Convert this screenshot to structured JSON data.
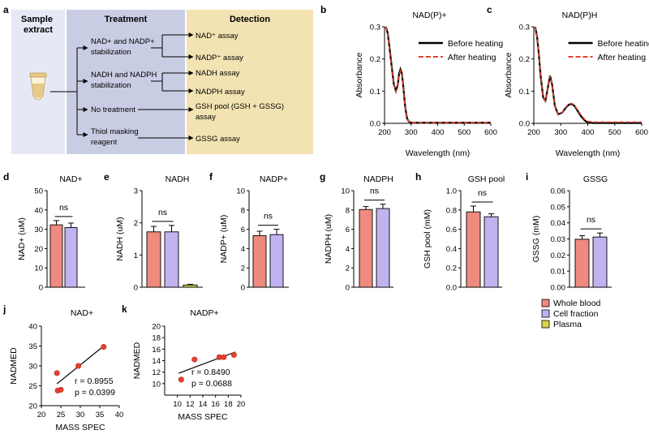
{
  "figure": {
    "panel_labels": [
      "a",
      "b",
      "c",
      "d",
      "e",
      "f",
      "g",
      "h",
      "i",
      "j",
      "k"
    ],
    "colors": {
      "sample_bg": "#e6e9f5",
      "treatment_bg": "#c9cde4",
      "detection_bg": "#f3e3b2",
      "whole_blood": "#ef8a7f",
      "cell_fraction": "#c2b2ef",
      "plasma": "#d8d44a",
      "before_heating": "#000000",
      "after_heating": "#e8402f",
      "scatter_point": "#e8402f"
    }
  },
  "schematic": {
    "sample_label": "Sample extract",
    "sample_label_lines": [
      "Sample",
      "extract"
    ],
    "treatment_header": "Treatment",
    "detection_header": "Detection",
    "treatments": [
      {
        "label": "NAD+ and NADP+ stabilization",
        "lines": [
          "NAD+ and NADP+",
          "stabilization"
        ]
      },
      {
        "label": "NADH and NADPH stabilization",
        "lines": [
          "NADH and NADPH",
          "stabilization"
        ]
      },
      {
        "label": "No treatment",
        "lines": [
          "No treatment"
        ]
      },
      {
        "label": "Thiol masking reagent",
        "lines": [
          "Thiol masking",
          "reagent"
        ]
      }
    ],
    "detections": [
      {
        "label": "NAD⁺ assay",
        "lines": [
          "NAD⁺ assay"
        ]
      },
      {
        "label": "NADP⁺ assay",
        "lines": [
          "NADP⁺ assay"
        ]
      },
      {
        "label": "NADH assay",
        "lines": [
          "NADH assay"
        ]
      },
      {
        "label": "NADPH assay",
        "lines": [
          "NADPH assay"
        ]
      },
      {
        "label": "GSH pool (GSH + GSSG) assay",
        "lines": [
          "GSH pool (GSH + GSSG)",
          "assay"
        ]
      },
      {
        "label": "GSSG assay",
        "lines": [
          "GSSG assay"
        ]
      }
    ]
  },
  "chart_data": [
    {
      "id": "b",
      "type": "line",
      "title": "NAD(P)+",
      "xlabel": "Wavelength (nm)",
      "ylabel": "Absorbance",
      "xlim": [
        200,
        600
      ],
      "ylim": [
        0,
        0.3
      ],
      "xticks": [
        200,
        300,
        400,
        500,
        600
      ],
      "yticks": [
        0.0,
        0.1,
        0.2,
        0.3
      ],
      "ytick_labels": [
        "0.0",
        "0.1",
        "0.2",
        "0.3"
      ],
      "legend": "top-right",
      "series": [
        {
          "name": "Before heating",
          "style": "solid",
          "x": [
            205,
            212,
            218,
            225,
            235,
            243,
            250,
            255,
            260,
            265,
            270,
            278,
            285,
            292,
            300,
            320,
            400,
            500,
            600
          ],
          "y": [
            0.3,
            0.28,
            0.24,
            0.19,
            0.12,
            0.1,
            0.12,
            0.155,
            0.168,
            0.155,
            0.12,
            0.05,
            0.015,
            0.005,
            0.002,
            0.002,
            0.002,
            0.002,
            0.002
          ]
        },
        {
          "name": "After heating",
          "style": "dashed",
          "x": [
            205,
            212,
            218,
            225,
            235,
            243,
            250,
            255,
            260,
            265,
            270,
            278,
            285,
            292,
            300,
            320,
            400,
            500,
            600
          ],
          "y": [
            0.3,
            0.275,
            0.235,
            0.185,
            0.118,
            0.098,
            0.118,
            0.15,
            0.163,
            0.15,
            0.117,
            0.048,
            0.014,
            0.005,
            0.002,
            0.002,
            0.002,
            0.002,
            0.002
          ]
        }
      ]
    },
    {
      "id": "c",
      "type": "line",
      "title": "NAD(P)H",
      "xlabel": "Wavelength (nm)",
      "ylabel": "Absorbance",
      "xlim": [
        200,
        600
      ],
      "ylim": [
        0,
        0.3
      ],
      "xticks": [
        200,
        300,
        400,
        500,
        600
      ],
      "yticks": [
        0.0,
        0.1,
        0.2,
        0.3
      ],
      "ytick_labels": [
        "0.0",
        "0.1",
        "0.2",
        "0.3"
      ],
      "legend": "top-right",
      "series": [
        {
          "name": "Before heating",
          "style": "solid",
          "x": [
            205,
            212,
            218,
            225,
            235,
            243,
            252,
            260,
            268,
            278,
            290,
            305,
            320,
            330,
            340,
            350,
            360,
            375,
            390,
            400,
            420,
            500,
            600
          ],
          "y": [
            0.3,
            0.27,
            0.22,
            0.15,
            0.08,
            0.07,
            0.11,
            0.148,
            0.12,
            0.055,
            0.028,
            0.033,
            0.05,
            0.058,
            0.06,
            0.055,
            0.042,
            0.022,
            0.008,
            0.003,
            0.001,
            0.001,
            0.001
          ]
        },
        {
          "name": "After heating",
          "style": "dashed",
          "x": [
            205,
            212,
            218,
            225,
            235,
            243,
            252,
            260,
            268,
            278,
            290,
            305,
            320,
            330,
            340,
            350,
            360,
            375,
            390,
            400,
            420,
            500,
            600
          ],
          "y": [
            0.3,
            0.27,
            0.22,
            0.15,
            0.08,
            0.07,
            0.11,
            0.147,
            0.12,
            0.055,
            0.028,
            0.034,
            0.052,
            0.06,
            0.062,
            0.057,
            0.045,
            0.026,
            0.011,
            0.006,
            0.004,
            0.004,
            0.004
          ]
        }
      ]
    },
    {
      "id": "d",
      "type": "bar",
      "title": "NAD+",
      "ylabel": "NAD+ (uM)",
      "ylim": [
        0,
        50
      ],
      "yticks": [
        0,
        10,
        20,
        30,
        40,
        50
      ],
      "ytick_labels": [
        "0",
        "10",
        "20",
        "30",
        "40",
        "50"
      ],
      "categories": [
        "Whole blood",
        "Cell fraction"
      ],
      "values": [
        32.3,
        30.9
      ],
      "errors": [
        2.2,
        2.3
      ],
      "annotation": "ns"
    },
    {
      "id": "e",
      "type": "bar",
      "title": "NADH",
      "ylabel": "NADH (uM)",
      "ylim": [
        0,
        3
      ],
      "yticks": [
        0,
        1,
        2,
        3
      ],
      "ytick_labels": [
        "0",
        "1",
        "2",
        "3"
      ],
      "categories": [
        "Whole blood",
        "Cell fraction",
        "Plasma"
      ],
      "values": [
        1.72,
        1.72,
        0.07
      ],
      "errors": [
        0.17,
        0.2,
        0.02
      ],
      "annotation": "ns"
    },
    {
      "id": "f",
      "type": "bar",
      "title": "NADP+",
      "ylabel": "NADP+ (uM)",
      "ylim": [
        0,
        10
      ],
      "yticks": [
        0,
        2,
        4,
        6,
        8,
        10
      ],
      "ytick_labels": [
        "0",
        "2",
        "4",
        "6",
        "8",
        "10"
      ],
      "categories": [
        "Whole blood",
        "Cell fraction"
      ],
      "values": [
        5.35,
        5.45
      ],
      "errors": [
        0.45,
        0.55
      ],
      "annotation": "ns"
    },
    {
      "id": "g",
      "type": "bar",
      "title": "NADPH",
      "ylabel": "NADPH (uM)",
      "ylim": [
        0,
        10
      ],
      "yticks": [
        0,
        2,
        4,
        6,
        8,
        10
      ],
      "ytick_labels": [
        "0",
        "2",
        "4",
        "6",
        "8",
        "10"
      ],
      "categories": [
        "Whole blood",
        "Cell fraction"
      ],
      "values": [
        8.05,
        8.15
      ],
      "errors": [
        0.3,
        0.45
      ],
      "annotation": "ns"
    },
    {
      "id": "h",
      "type": "bar",
      "title": "GSH pool",
      "ylabel": "GSH pool (mM)",
      "ylim": [
        0,
        1.0
      ],
      "yticks": [
        0,
        0.2,
        0.4,
        0.6,
        0.8,
        1.0
      ],
      "ytick_labels": [
        "0.0",
        "0.2",
        "0.4",
        "0.6",
        "0.8",
        "1.0"
      ],
      "categories": [
        "Whole blood",
        "Cell fraction"
      ],
      "values": [
        0.78,
        0.73
      ],
      "errors": [
        0.06,
        0.03
      ],
      "annotation": "ns"
    },
    {
      "id": "i",
      "type": "bar",
      "title": "GSSG",
      "ylabel": "GSSG (mM)",
      "ylim": [
        0,
        0.06
      ],
      "yticks": [
        0,
        0.01,
        0.02,
        0.03,
        0.04,
        0.05,
        0.06
      ],
      "ytick_labels": [
        "0.00",
        "0.01",
        "0.02",
        "0.03",
        "0.04",
        "0.05",
        "0.06"
      ],
      "categories": [
        "Whole blood",
        "Cell fraction"
      ],
      "values": [
        0.0298,
        0.0312
      ],
      "errors": [
        0.0022,
        0.0025
      ],
      "annotation": "ns"
    },
    {
      "id": "j",
      "type": "scatter",
      "title": "NAD+",
      "xlabel": "MASS SPEC",
      "ylabel": "NADMED",
      "xlim": [
        20,
        40
      ],
      "ylim": [
        20,
        40
      ],
      "xticks": [
        20,
        25,
        30,
        35,
        40
      ],
      "yticks": [
        20,
        25,
        30,
        35,
        40
      ],
      "x": [
        24.0,
        24.2,
        25.0,
        29.5,
        36.0
      ],
      "y": [
        28.2,
        23.8,
        24.0,
        30.0,
        34.8
      ],
      "fit_x": [
        24,
        36
      ],
      "fit_y": [
        25.5,
        35.0
      ],
      "stats": [
        "r = 0.8955",
        "p = 0.0399"
      ]
    },
    {
      "id": "k",
      "type": "scatter",
      "title": "NADP+",
      "xlabel": "MASS SPEC",
      "ylabel": "NADMED",
      "xlim": [
        8,
        20
      ],
      "ylim": [
        8,
        20
      ],
      "xticks": [
        10,
        12,
        14,
        16,
        18,
        20
      ],
      "yticks": [
        10,
        12,
        14,
        16,
        18,
        20
      ],
      "x": [
        10.6,
        12.7,
        16.6,
        17.3,
        18.9
      ],
      "y": [
        10.7,
        14.2,
        14.6,
        14.6,
        15.0
      ],
      "fit_x": [
        10.2,
        19.1
      ],
      "fit_y": [
        11.8,
        15.5
      ],
      "stats": [
        "r = 0.8490",
        "p = 0.0688"
      ]
    }
  ],
  "bar_legend": {
    "entries": [
      "Whole blood",
      "Cell fraction",
      "Plasma"
    ]
  }
}
